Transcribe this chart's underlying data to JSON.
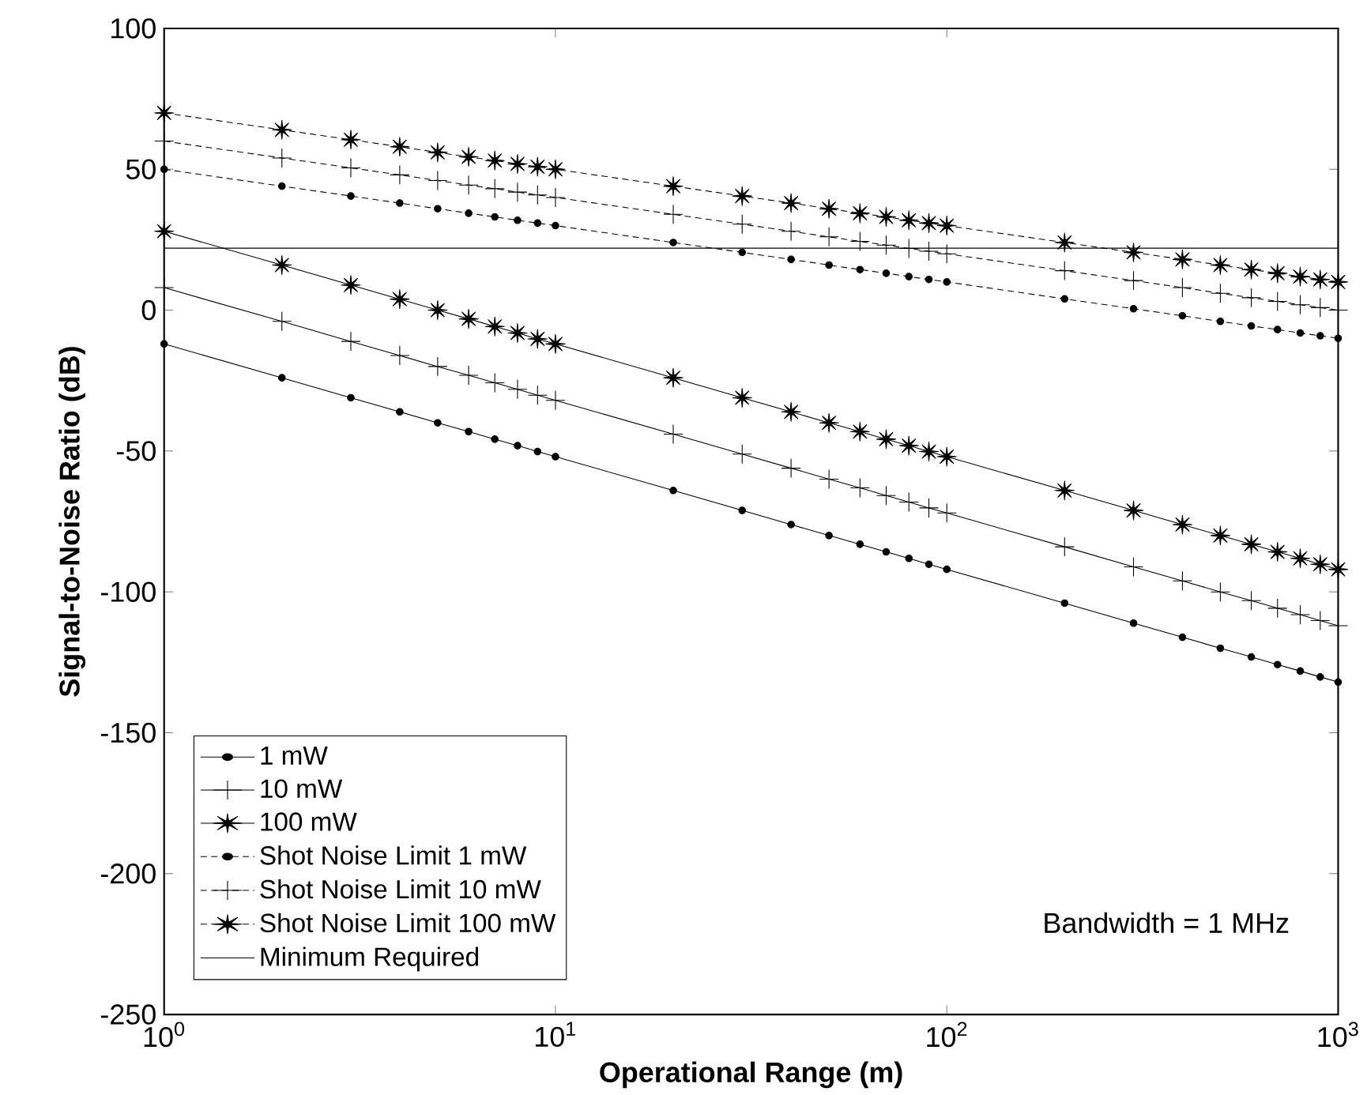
{
  "chart_data": {
    "type": "line",
    "xlabel": "Operational Range (m)",
    "ylabel": "Signal-to-Noise Ratio (dB)",
    "annotations": [
      "Bandwidth = 1 MHz"
    ],
    "log": "x",
    "grid": false,
    "legend": "bottom left",
    "xlim": [
      1,
      1000
    ],
    "ylim": [
      -250,
      100
    ],
    "xticks": [
      {
        "value": 1,
        "label": "10$^{0}$"
      },
      {
        "value": 10,
        "label": "10$^{1}$"
      },
      {
        "value": 100,
        "label": "10$^{2}$"
      },
      {
        "value": 1000,
        "label": "10$^{3}$"
      }
    ],
    "yticks": [
      -250,
      -200,
      -150,
      -100,
      -50,
      0,
      50,
      100
    ],
    "x": [
      1,
      2,
      3,
      4,
      5,
      6,
      7,
      8,
      9,
      10,
      20,
      30,
      40,
      50,
      60,
      70,
      80,
      90,
      100,
      200,
      300,
      400,
      500,
      600,
      700,
      800,
      900,
      1000
    ],
    "series": [
      {
        "name": "1 mW",
        "color": "#000000",
        "marker": "circle",
        "line_style": "solid",
        "values": [
          -12,
          -24,
          -31.1,
          -36.1,
          -40,
          -43.1,
          -45.8,
          -48.1,
          -50.2,
          -52,
          -64,
          -71.1,
          -76.1,
          -80,
          -83.1,
          -85.8,
          -88.1,
          -90.2,
          -92,
          -104,
          -111.1,
          -116.1,
          -120,
          -123.1,
          -125.8,
          -128.1,
          -130.2,
          -132
        ]
      },
      {
        "name": "10 mW",
        "color": "#000000",
        "marker": "cross",
        "line_style": "solid",
        "values": [
          8,
          -4,
          -11.1,
          -16.1,
          -20,
          -23.1,
          -25.8,
          -28.1,
          -30.2,
          -32,
          -44,
          -51.1,
          -56.1,
          -60,
          -63.1,
          -65.8,
          -68.1,
          -70.2,
          -72,
          -84,
          -91.1,
          -96.1,
          -100,
          -103.1,
          -105.8,
          -108.1,
          -110.2,
          -112
        ]
      },
      {
        "name": "100 mW",
        "color": "#000000",
        "marker": "star",
        "line_style": "solid",
        "values": [
          28,
          16,
          8.9,
          3.9,
          0,
          -3.1,
          -5.8,
          -8.1,
          -10.2,
          -12,
          -24,
          -31.1,
          -36.1,
          -40,
          -43.1,
          -45.8,
          -48.1,
          -50.2,
          -52,
          -64,
          -71.1,
          -76.1,
          -80,
          -83.1,
          -85.8,
          -88.1,
          -90.2,
          -92
        ]
      },
      {
        "name": "Shot Noise Limit 1 mW",
        "color": "#000000",
        "marker": "circle",
        "line_style": "dashed",
        "values": [
          50,
          44,
          40.5,
          38,
          36,
          34.4,
          33.1,
          31.9,
          30.9,
          30,
          24,
          20.5,
          18,
          16,
          14.4,
          13.1,
          11.9,
          10.9,
          10,
          4,
          0.5,
          -2,
          -4,
          -5.6,
          -6.9,
          -8.1,
          -9.1,
          -10
        ]
      },
      {
        "name": "Shot Noise Limit 10 mW",
        "color": "#000000",
        "marker": "cross",
        "line_style": "dashed",
        "values": [
          60,
          54,
          50.5,
          48,
          46,
          44.4,
          43.1,
          41.9,
          40.9,
          40,
          34,
          30.5,
          28,
          26,
          24.4,
          23.1,
          21.9,
          20.9,
          20,
          14,
          10.5,
          8,
          6,
          4.4,
          3.1,
          1.9,
          0.9,
          0
        ]
      },
      {
        "name": "Shot Noise Limit 100 mW",
        "color": "#000000",
        "marker": "star",
        "line_style": "dashed",
        "values": [
          70,
          64,
          60.5,
          58,
          56,
          54.4,
          53.1,
          51.9,
          50.9,
          50,
          44,
          40.5,
          38,
          36,
          34.4,
          33.1,
          31.9,
          30.9,
          30,
          24,
          20.5,
          18,
          16,
          14.4,
          13.1,
          11.9,
          10.9,
          10
        ]
      }
    ],
    "ref_lines": [
      {
        "axis": "y",
        "value": 22,
        "label": "Minimum Required",
        "color": "#000000",
        "line_style": "solid"
      }
    ]
  }
}
